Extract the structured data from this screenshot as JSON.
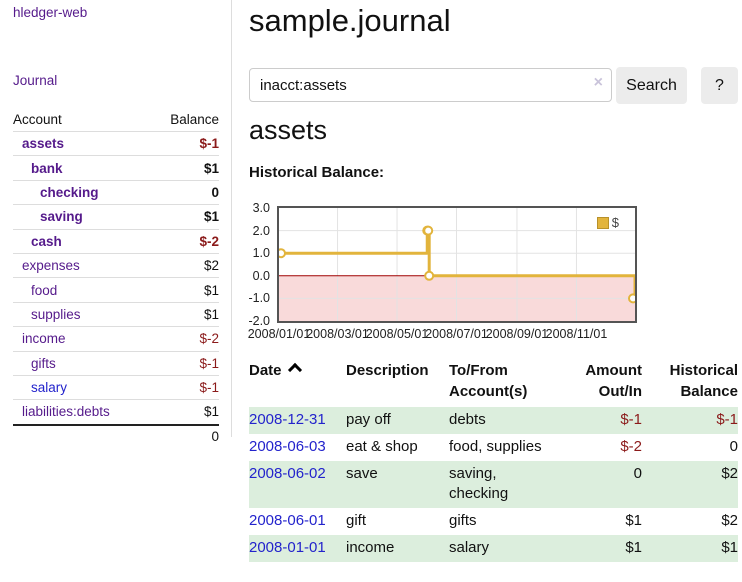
{
  "app": {
    "brand": "hledger-web",
    "nav_journal": "Journal"
  },
  "header": {
    "title": "sample.journal"
  },
  "search": {
    "value": "inacct:assets",
    "clear_icon": "×",
    "button": "Search",
    "help_button": "?"
  },
  "account_page": {
    "heading": "assets",
    "chart_label": "Historical Balance:"
  },
  "sidebar": {
    "table": {
      "col_account": "Account",
      "col_balance": "Balance",
      "rows": [
        {
          "name": "assets",
          "depth": 1,
          "balance": "$-1",
          "bold": true,
          "negative": true,
          "link_color": "purple"
        },
        {
          "name": "bank",
          "depth": 2,
          "balance": "$1",
          "bold": true,
          "negative": false,
          "link_color": "purple"
        },
        {
          "name": "checking",
          "depth": 3,
          "balance": "0",
          "bold": true,
          "negative": false,
          "link_color": "purple"
        },
        {
          "name": "saving",
          "depth": 3,
          "balance": "$1",
          "bold": true,
          "negative": false,
          "link_color": "purple"
        },
        {
          "name": "cash",
          "depth": 2,
          "balance": "$-2",
          "bold": true,
          "negative": true,
          "link_color": "purple"
        },
        {
          "name": "expenses",
          "depth": 1,
          "balance": "$2",
          "bold": false,
          "negative": false,
          "link_color": "purple"
        },
        {
          "name": "food",
          "depth": 2,
          "balance": "$1",
          "bold": false,
          "negative": false,
          "link_color": "purple"
        },
        {
          "name": "supplies",
          "depth": 2,
          "balance": "$1",
          "bold": false,
          "negative": false,
          "link_color": "purple"
        },
        {
          "name": "income",
          "depth": 1,
          "balance": "$-2",
          "bold": false,
          "negative": true,
          "link_color": "purple"
        },
        {
          "name": "gifts",
          "depth": 2,
          "balance": "$-1",
          "bold": false,
          "negative": true,
          "link_color": "purple"
        },
        {
          "name": "salary",
          "depth": 2,
          "balance": "$-1",
          "bold": false,
          "negative": true,
          "link_color": "blue"
        },
        {
          "name": "liabilities:debts",
          "depth": 1,
          "balance": "$1",
          "bold": false,
          "negative": false,
          "link_color": "purple"
        }
      ],
      "total": "0"
    }
  },
  "chart_data": {
    "type": "line",
    "step": true,
    "title": "Historical Balance:",
    "legend": {
      "label": "$",
      "position": "top-right"
    },
    "x": {
      "unit": "date",
      "tick_labels": [
        "2008/01/01",
        "2008/03/01",
        "2008/05/01",
        "2008/07/01",
        "2008/09/01",
        "2008/11/01"
      ],
      "tick_days": [
        0,
        60,
        121,
        182,
        244,
        305
      ],
      "domain_days": [
        0,
        365
      ]
    },
    "y": {
      "tick_labels": [
        "3.0",
        "2.0",
        "1.0",
        "0.0",
        "-1.0",
        "-2.0"
      ],
      "tick_values": [
        3,
        2,
        1,
        0,
        -1,
        -2
      ],
      "range": [
        -2,
        3
      ]
    },
    "series": [
      {
        "name": "$",
        "points": [
          {
            "date": "2008-01-01",
            "day": 0,
            "value": 1
          },
          {
            "date": "2008-06-01",
            "day": 152,
            "value": 2
          },
          {
            "date": "2008-06-02",
            "day": 153,
            "value": 2
          },
          {
            "date": "2008-06-03",
            "day": 154,
            "value": 0
          },
          {
            "date": "2008-12-31",
            "day": 365,
            "value": -1
          }
        ]
      }
    ],
    "negative_region_shaded": true,
    "grid": true
  },
  "register": {
    "columns": [
      {
        "key": "date",
        "line1": "Date",
        "line2": "",
        "sortable": true,
        "align": "left"
      },
      {
        "key": "description",
        "line1": "Description",
        "line2": "",
        "sortable": false,
        "align": "left"
      },
      {
        "key": "accounts",
        "line1": "To/From",
        "line2": "Account(s)",
        "sortable": false,
        "align": "left"
      },
      {
        "key": "amount",
        "line1": "Amount",
        "line2": "Out/In",
        "sortable": false,
        "align": "right"
      },
      {
        "key": "balance",
        "line1": "Historical",
        "line2": "Balance",
        "sortable": false,
        "align": "right"
      }
    ],
    "rows": [
      {
        "date": "2008-12-31",
        "description": "pay off",
        "accounts": [
          "debts"
        ],
        "amount": "$-1",
        "amount_negative": true,
        "balance": "$-1",
        "balance_negative": true
      },
      {
        "date": "2008-06-03",
        "description": "eat & shop",
        "accounts": [
          "food, supplies"
        ],
        "amount": "$-2",
        "amount_negative": true,
        "balance": "0",
        "balance_negative": false
      },
      {
        "date": "2008-06-02",
        "description": "save",
        "accounts": [
          "saving,",
          "checking"
        ],
        "amount": "0",
        "amount_negative": false,
        "balance": "$2",
        "balance_negative": false
      },
      {
        "date": "2008-06-01",
        "description": "gift",
        "accounts": [
          "gifts"
        ],
        "amount": "$1",
        "amount_negative": false,
        "balance": "$2",
        "balance_negative": false
      },
      {
        "date": "2008-01-01",
        "description": "income",
        "accounts": [
          "salary"
        ],
        "amount": "$1",
        "amount_negative": false,
        "balance": "$1",
        "balance_negative": false
      }
    ]
  },
  "colors": {
    "link_purple": "#551a8b",
    "link_blue": "#2323cc",
    "negative_red": "#8b1a1a",
    "row_green": "#dceedd",
    "chart_line_gold": "#e2b43c",
    "chart_negative_fill": "#f9dada",
    "chart_zero_line": "#a00000",
    "chart_border_gray": "#545454",
    "chart_gridline": "#e3e3e3",
    "divider_gray": "#dddddd",
    "button_gray": "#ececec",
    "input_border_gray": "#cccccc",
    "clear_icon_lavender": "#c9c3da",
    "text_black": "#111111"
  }
}
